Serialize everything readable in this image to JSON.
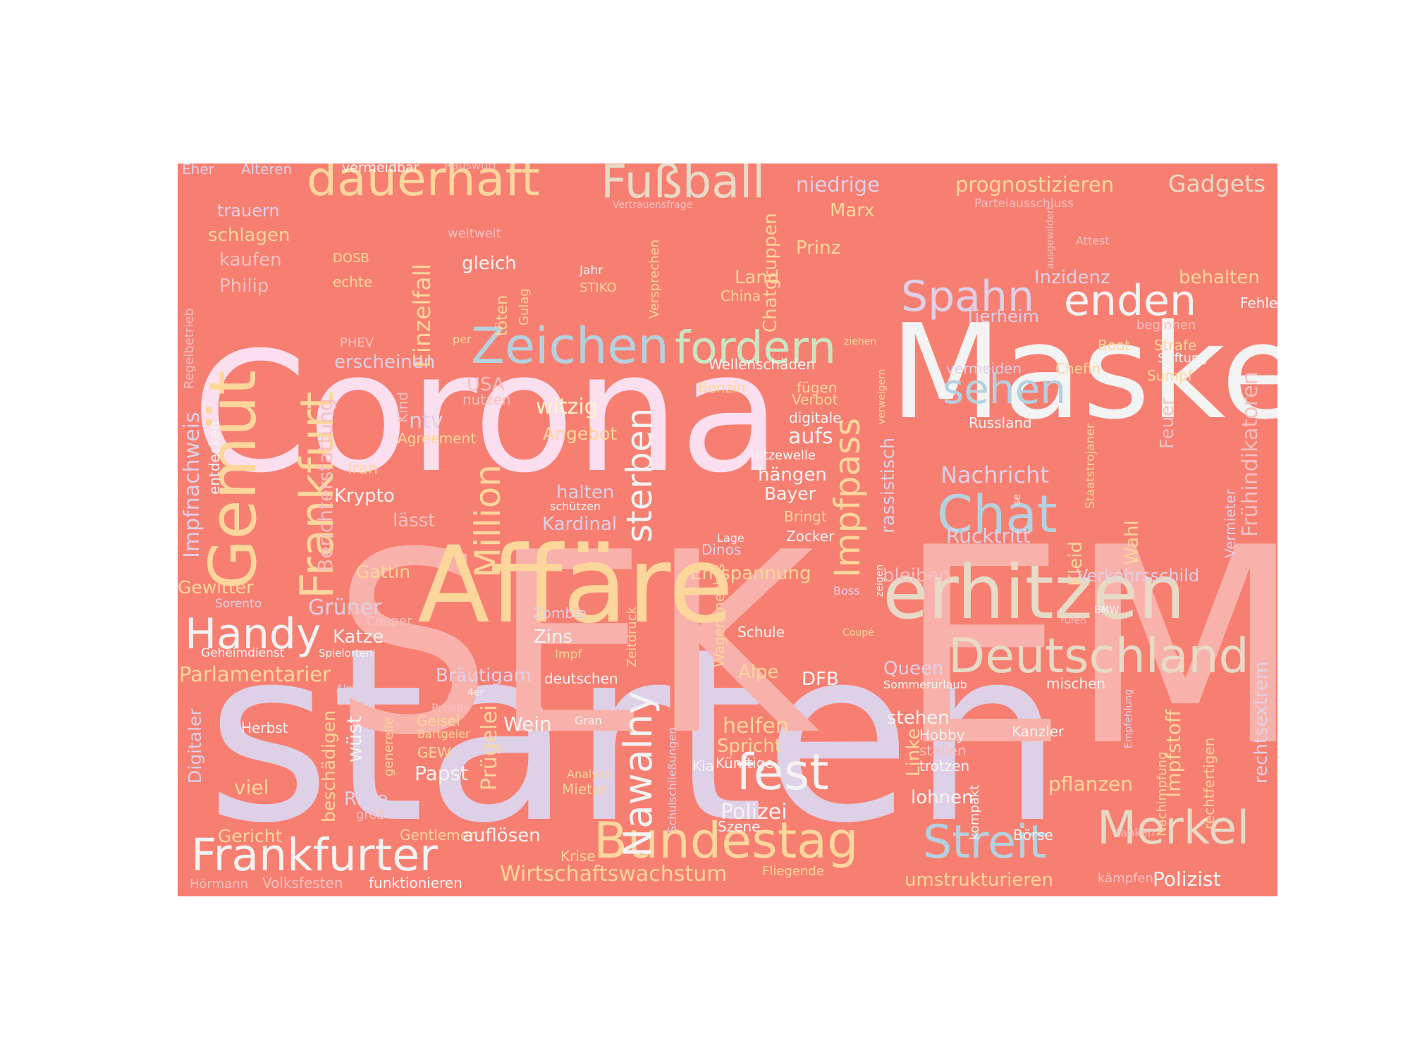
{
  "colors": {
    "page_background": "#ffffff",
    "cloud_background": "#f77f71",
    "palette": {
      "pink": "#fbdfee",
      "salmon_light": "#f9b2ab",
      "white": "#f3f3f3",
      "peach": "#fdd69c",
      "lavender": "#ded0e6",
      "blue": "#b4d1e0",
      "beige": "#e7dac6",
      "mint": "#c9e6c3",
      "cream": "#fff2cc",
      "rose_faint": "#f6bfc0",
      "rosy_muted": "#f7c3c3"
    }
  },
  "words": [
    {
      "text": "starten",
      "color": "lavender"
    },
    {
      "text": "EM",
      "color": "salmon_light"
    },
    {
      "text": "SEK",
      "color": "salmon_light"
    },
    {
      "text": "Corona",
      "color": "pink"
    },
    {
      "text": "Maske",
      "color": "white"
    },
    {
      "text": "Affäre",
      "color": "peach"
    },
    {
      "text": "erhitzen",
      "color": "beige"
    },
    {
      "text": "Gemüt",
      "color": "peach"
    },
    {
      "text": "Deutschland",
      "color": "beige"
    },
    {
      "text": "Bundestag",
      "color": "peach"
    },
    {
      "text": "Frankfurter",
      "color": "white"
    },
    {
      "text": "Merkel",
      "color": "beige"
    },
    {
      "text": "Streit",
      "color": "blue"
    },
    {
      "text": "Chat",
      "color": "blue"
    },
    {
      "text": "Zeichen",
      "color": "blue"
    },
    {
      "text": "fordern",
      "color": "mint"
    },
    {
      "text": "dauerhaft",
      "color": "peach"
    },
    {
      "text": "Fußball",
      "color": "beige"
    },
    {
      "text": "Spahn",
      "color": "lavender"
    },
    {
      "text": "enden",
      "color": "white"
    },
    {
      "text": "sehen",
      "color": "blue"
    },
    {
      "text": "Handy",
      "color": "white"
    },
    {
      "text": "fest",
      "color": "white"
    },
    {
      "text": "Frankfurt",
      "color": "peach"
    },
    {
      "text": "Impfpass",
      "color": "peach"
    },
    {
      "text": "Million",
      "color": "peach"
    },
    {
      "text": "sterben",
      "color": "white"
    },
    {
      "text": "Nawalny",
      "color": "white"
    },
    {
      "text": "Gadgets",
      "color": "beige"
    },
    {
      "text": "prognostizieren",
      "color": "peach"
    },
    {
      "text": "niedrige",
      "color": "lavender"
    },
    {
      "text": "Marx",
      "color": "peach"
    },
    {
      "text": "Prinz",
      "color": "peach"
    },
    {
      "text": "Land",
      "color": "peach"
    },
    {
      "text": "Inzidenz",
      "color": "lavender"
    },
    {
      "text": "behalten",
      "color": "peach"
    },
    {
      "text": "Tierheim",
      "color": "lavender"
    },
    {
      "text": "Fehler",
      "color": "white"
    },
    {
      "text": "beginnen",
      "color": "rose_faint"
    },
    {
      "text": "Boot",
      "color": "peach"
    },
    {
      "text": "Strafe",
      "color": "peach"
    },
    {
      "text": "Stiftung",
      "color": "white"
    },
    {
      "text": "Sumpf",
      "color": "peach"
    },
    {
      "text": "vermeiden",
      "color": "lavender"
    },
    {
      "text": "Chefin",
      "color": "peach"
    },
    {
      "text": "Russland",
      "color": "white"
    },
    {
      "text": "Feuer",
      "color": "rose_faint"
    },
    {
      "text": "Frühindikatoren",
      "color": "rose_faint"
    },
    {
      "text": "Nachricht",
      "color": "lavender"
    },
    {
      "text": "Rücktritt",
      "color": "lavender"
    },
    {
      "text": "Wahl",
      "color": "peach"
    },
    {
      "text": "Vermieter",
      "color": "lavender"
    },
    {
      "text": "Kleid",
      "color": "peach"
    },
    {
      "text": "Staatstrojaner",
      "color": "peach"
    },
    {
      "text": "Verkehrsschild",
      "color": "lavender"
    },
    {
      "text": "bleiben",
      "color": "rose_faint"
    },
    {
      "text": "rassistisch",
      "color": "lavender"
    },
    {
      "text": "verweigern",
      "color": "peach"
    },
    {
      "text": "Eher",
      "color": "lavender"
    },
    {
      "text": "Älteren",
      "color": "lavender"
    },
    {
      "text": "vermeidbar",
      "color": "white"
    },
    {
      "text": "Rauswurf",
      "color": "rose_faint"
    },
    {
      "text": "trauern",
      "color": "lavender"
    },
    {
      "text": "schlagen",
      "color": "peach"
    },
    {
      "text": "kaufen",
      "color": "rose_faint"
    },
    {
      "text": "DOSB",
      "color": "peach"
    },
    {
      "text": "Philip",
      "color": "rose_faint"
    },
    {
      "text": "echte",
      "color": "peach"
    },
    {
      "text": "weltweit",
      "color": "rose_faint"
    },
    {
      "text": "Jahr",
      "color": "white"
    },
    {
      "text": "STIKO",
      "color": "peach"
    },
    {
      "text": "gleich",
      "color": "white"
    },
    {
      "text": "Einzelfall",
      "color": "peach"
    },
    {
      "text": "töten",
      "color": "peach"
    },
    {
      "text": "Gulag",
      "color": "peach"
    },
    {
      "text": "Versprechen",
      "color": "peach"
    },
    {
      "text": "China",
      "color": "peach"
    },
    {
      "text": "Chatgruppen",
      "color": "peach"
    },
    {
      "text": "Vertrauensfrage",
      "color": "rose_faint"
    },
    {
      "text": "Parteiausschluss",
      "color": "rose_faint"
    },
    {
      "text": "ausgewildert",
      "color": "rose_faint"
    },
    {
      "text": "Attest",
      "color": "rose_faint"
    },
    {
      "text": "Regelbetrieb",
      "color": "rose_faint"
    },
    {
      "text": "PHEV",
      "color": "rose_faint"
    },
    {
      "text": "per",
      "color": "peach"
    },
    {
      "text": "erscheinen",
      "color": "lavender"
    },
    {
      "text": "USA",
      "color": "rose_faint"
    },
    {
      "text": "nutzen",
      "color": "rose_faint"
    },
    {
      "text": "Kind",
      "color": "rose_faint"
    },
    {
      "text": "ntv",
      "color": "lavender"
    },
    {
      "text": "Agreement",
      "color": "peach"
    },
    {
      "text": "Impfnachweis",
      "color": "lavender"
    },
    {
      "text": "entdecken",
      "color": "white"
    },
    {
      "text": "Berichterstattung",
      "color": "rose_faint"
    },
    {
      "text": "Iran",
      "color": "peach"
    },
    {
      "text": "Krypto",
      "color": "white"
    },
    {
      "text": "lässt",
      "color": "rose_faint"
    },
    {
      "text": "Gattin",
      "color": "peach"
    },
    {
      "text": "Wellenschäden",
      "color": "white"
    },
    {
      "text": "Benzin",
      "color": "peach"
    },
    {
      "text": "fügen",
      "color": "peach"
    },
    {
      "text": "Verbot",
      "color": "peach"
    },
    {
      "text": "digitale",
      "color": "white"
    },
    {
      "text": "ziehen",
      "color": "peach"
    },
    {
      "text": "witzig",
      "color": "cream"
    },
    {
      "text": "Angebot",
      "color": "peach"
    },
    {
      "text": "aufs",
      "color": "white"
    },
    {
      "text": "Hitzewelle",
      "color": "white"
    },
    {
      "text": "hängen",
      "color": "white"
    },
    {
      "text": "Bayer",
      "color": "white"
    },
    {
      "text": "Bringt",
      "color": "peach"
    },
    {
      "text": "Zocker",
      "color": "white"
    },
    {
      "text": "halten",
      "color": "lavender"
    },
    {
      "text": "schützen",
      "color": "white"
    },
    {
      "text": "Kardinal",
      "color": "lavender"
    },
    {
      "text": "Lage",
      "color": "white"
    },
    {
      "text": "Dinos",
      "color": "lavender"
    },
    {
      "text": "zeigen",
      "color": "white"
    },
    {
      "text": "se",
      "color": "white"
    },
    {
      "text": "Entspannung",
      "color": "peach"
    },
    {
      "text": "Gewitter",
      "color": "peach"
    },
    {
      "text": "Grüner",
      "color": "lavender"
    },
    {
      "text": "Sorento",
      "color": "lavender"
    },
    {
      "text": "Cooper",
      "color": "rose_faint"
    },
    {
      "text": "Katze",
      "color": "white"
    },
    {
      "text": "Zombie",
      "color": "lavender"
    },
    {
      "text": "Zins",
      "color": "white"
    },
    {
      "text": "Geheimdienst",
      "color": "white"
    },
    {
      "text": "Spielorten",
      "color": "white"
    },
    {
      "text": "Impf",
      "color": "peach"
    },
    {
      "text": "Zeitdruck",
      "color": "peach"
    },
    {
      "text": "Boss",
      "color": "lavender"
    },
    {
      "text": "Coupé",
      "color": "peach"
    },
    {
      "text": "Schule",
      "color": "white"
    },
    {
      "text": "rufen",
      "color": "rose_faint"
    },
    {
      "text": "BMW",
      "color": "white"
    },
    {
      "text": "Parlamentarier",
      "color": "peach"
    },
    {
      "text": "Bräutigam",
      "color": "lavender"
    },
    {
      "text": "Wagenknechts",
      "color": "peach"
    },
    {
      "text": "deutschen",
      "color": "white"
    },
    {
      "text": "Alpe",
      "color": "peach"
    },
    {
      "text": "DFB",
      "color": "white"
    },
    {
      "text": "Queen",
      "color": "lavender"
    },
    {
      "text": "Sommerurlaub",
      "color": "white"
    },
    {
      "text": "mischen",
      "color": "white"
    },
    {
      "text": "Alm",
      "color": "lavender"
    },
    {
      "text": "4er",
      "color": "white"
    },
    {
      "text": "Promis",
      "color": "rose_faint"
    },
    {
      "text": "Geisel",
      "color": "peach"
    },
    {
      "text": "Bartgeier",
      "color": "peach"
    },
    {
      "text": "GEW",
      "color": "peach"
    },
    {
      "text": "Herbst",
      "color": "white"
    },
    {
      "text": "Gran",
      "color": "white"
    },
    {
      "text": "helfen",
      "color": "peach"
    },
    {
      "text": "Spricht",
      "color": "peach"
    },
    {
      "text": "Künftige",
      "color": "white"
    },
    {
      "text": "Kia",
      "color": "white"
    },
    {
      "text": "stehen",
      "color": "white"
    },
    {
      "text": "Hobby",
      "color": "white"
    },
    {
      "text": "stellen",
      "color": "rose_faint"
    },
    {
      "text": "trotzen",
      "color": "white"
    },
    {
      "text": "Kanzler",
      "color": "white"
    },
    {
      "text": "Linke",
      "color": "peach"
    },
    {
      "text": "Empfehlung",
      "color": "lavender"
    },
    {
      "text": "rechtsextrem",
      "color": "lavender"
    },
    {
      "text": "Impfstoff",
      "color": "peach"
    },
    {
      "text": "rechtfertigen",
      "color": "peach"
    },
    {
      "text": "Nachimpfung",
      "color": "peach"
    },
    {
      "text": "pflanzen",
      "color": "peach"
    },
    {
      "text": "Digitaler",
      "color": "lavender"
    },
    {
      "text": "beschädigen",
      "color": "peach"
    },
    {
      "text": "wüst",
      "color": "white"
    },
    {
      "text": "generelle",
      "color": "peach"
    },
    {
      "text": "Prügelei",
      "color": "peach"
    },
    {
      "text": "Wein",
      "color": "white"
    },
    {
      "text": "Papst",
      "color": "white"
    },
    {
      "text": "Analyse",
      "color": "peach"
    },
    {
      "text": "Mieter",
      "color": "peach"
    },
    {
      "text": "Schulschließungen",
      "color": "lavender"
    },
    {
      "text": "viel",
      "color": "peach"
    },
    {
      "text": "Rose",
      "color": "lavender"
    },
    {
      "text": "groß",
      "color": "rose_faint"
    },
    {
      "text": "Polizei",
      "color": "white"
    },
    {
      "text": "lohnen",
      "color": "white"
    },
    {
      "text": "kompakt",
      "color": "white"
    },
    {
      "text": "Gericht",
      "color": "peach"
    },
    {
      "text": "Gentlemen",
      "color": "peach"
    },
    {
      "text": "auflösen",
      "color": "white"
    },
    {
      "text": "Szene",
      "color": "white"
    },
    {
      "text": "Börse",
      "color": "white"
    },
    {
      "text": "tanken",
      "color": "rose_faint"
    },
    {
      "text": "Krise",
      "color": "peach"
    },
    {
      "text": "Hörmann",
      "color": "rose_faint"
    },
    {
      "text": "Volksfesten",
      "color": "rose_faint"
    },
    {
      "text": "funktionieren",
      "color": "white"
    },
    {
      "text": "Wirtschaftswachstum",
      "color": "peach"
    },
    {
      "text": "Fliegende",
      "color": "peach"
    },
    {
      "text": "umstrukturieren",
      "color": "peach"
    },
    {
      "text": "kämpfen",
      "color": "rose_faint"
    },
    {
      "text": "Polizist",
      "color": "white"
    }
  ]
}
